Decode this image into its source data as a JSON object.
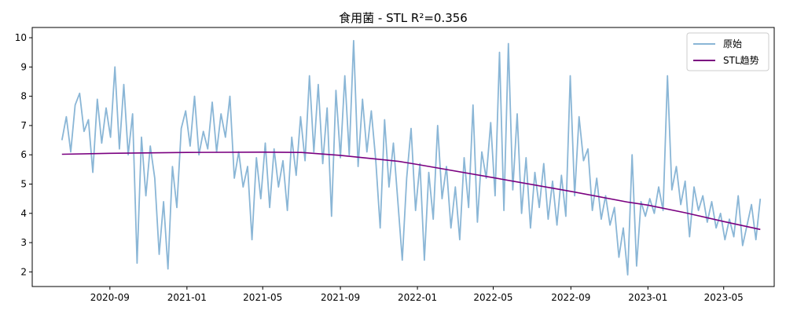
{
  "chart_data": {
    "type": "line",
    "title": "食用菌 - STL R²=0.356",
    "xlabel": "",
    "ylabel": "",
    "x_range": [
      "2020-05-01",
      "2023-07-20"
    ],
    "ylim": [
      1.5,
      10.35
    ],
    "y_ticks": [
      2,
      3,
      4,
      5,
      6,
      7,
      8,
      9,
      10
    ],
    "x_ticks": [
      "2020-09",
      "2021-01",
      "2021-05",
      "2021-09",
      "2022-01",
      "2022-05",
      "2022-09",
      "2023-01",
      "2023-05"
    ],
    "grid": false,
    "legend_position": "top-right",
    "series": [
      {
        "name": "原始",
        "color": "#8ab6d6",
        "points": [
          [
            "2020-06-17",
            6.5
          ],
          [
            "2020-06-24",
            7.3
          ],
          [
            "2020-07-01",
            6.1
          ],
          [
            "2020-07-08",
            7.7
          ],
          [
            "2020-07-15",
            8.1
          ],
          [
            "2020-07-22",
            6.8
          ],
          [
            "2020-07-29",
            7.2
          ],
          [
            "2020-08-05",
            5.4
          ],
          [
            "2020-08-12",
            7.9
          ],
          [
            "2020-08-19",
            6.4
          ],
          [
            "2020-08-26",
            7.6
          ],
          [
            "2020-09-02",
            6.6
          ],
          [
            "2020-09-09",
            9.0
          ],
          [
            "2020-09-16",
            6.2
          ],
          [
            "2020-09-23",
            8.4
          ],
          [
            "2020-09-30",
            6.0
          ],
          [
            "2020-10-07",
            7.4
          ],
          [
            "2020-10-14",
            2.3
          ],
          [
            "2020-10-21",
            6.6
          ],
          [
            "2020-10-28",
            4.6
          ],
          [
            "2020-11-04",
            6.3
          ],
          [
            "2020-11-11",
            5.2
          ],
          [
            "2020-11-18",
            2.6
          ],
          [
            "2020-11-25",
            4.4
          ],
          [
            "2020-12-02",
            2.1
          ],
          [
            "2020-12-09",
            5.6
          ],
          [
            "2020-12-16",
            4.2
          ],
          [
            "2020-12-23",
            6.9
          ],
          [
            "2020-12-30",
            7.5
          ],
          [
            "2021-01-06",
            6.3
          ],
          [
            "2021-01-13",
            8.0
          ],
          [
            "2021-01-20",
            6.0
          ],
          [
            "2021-01-27",
            6.8
          ],
          [
            "2021-02-03",
            6.2
          ],
          [
            "2021-02-10",
            7.8
          ],
          [
            "2021-02-17",
            6.1
          ],
          [
            "2021-02-24",
            7.4
          ],
          [
            "2021-03-03",
            6.6
          ],
          [
            "2021-03-10",
            8.0
          ],
          [
            "2021-03-17",
            5.2
          ],
          [
            "2021-03-24",
            6.1
          ],
          [
            "2021-03-31",
            4.9
          ],
          [
            "2021-04-07",
            5.6
          ],
          [
            "2021-04-14",
            3.1
          ],
          [
            "2021-04-21",
            5.9
          ],
          [
            "2021-04-28",
            4.5
          ],
          [
            "2021-05-05",
            6.4
          ],
          [
            "2021-05-12",
            4.2
          ],
          [
            "2021-05-19",
            6.2
          ],
          [
            "2021-05-26",
            4.9
          ],
          [
            "2021-06-02",
            5.8
          ],
          [
            "2021-06-09",
            4.1
          ],
          [
            "2021-06-16",
            6.6
          ],
          [
            "2021-06-23",
            5.3
          ],
          [
            "2021-06-30",
            7.3
          ],
          [
            "2021-07-07",
            5.8
          ],
          [
            "2021-07-14",
            8.7
          ],
          [
            "2021-07-21",
            6.1
          ],
          [
            "2021-07-28",
            8.4
          ],
          [
            "2021-08-04",
            5.7
          ],
          [
            "2021-08-11",
            7.6
          ],
          [
            "2021-08-18",
            3.9
          ],
          [
            "2021-08-25",
            8.2
          ],
          [
            "2021-09-01",
            5.9
          ],
          [
            "2021-09-08",
            8.7
          ],
          [
            "2021-09-15",
            6.0
          ],
          [
            "2021-09-22",
            9.9
          ],
          [
            "2021-09-29",
            5.6
          ],
          [
            "2021-10-06",
            7.9
          ],
          [
            "2021-10-13",
            6.1
          ],
          [
            "2021-10-20",
            7.5
          ],
          [
            "2021-10-27",
            5.8
          ],
          [
            "2021-11-03",
            3.5
          ],
          [
            "2021-11-10",
            7.2
          ],
          [
            "2021-11-17",
            4.9
          ],
          [
            "2021-11-24",
            6.4
          ],
          [
            "2021-12-01",
            4.4
          ],
          [
            "2021-12-08",
            2.4
          ],
          [
            "2021-12-15",
            5.2
          ],
          [
            "2021-12-22",
            6.9
          ],
          [
            "2021-12-29",
            4.1
          ],
          [
            "2022-01-05",
            5.7
          ],
          [
            "2022-01-12",
            2.4
          ],
          [
            "2022-01-19",
            5.4
          ],
          [
            "2022-01-26",
            3.8
          ],
          [
            "2022-02-02",
            7.0
          ],
          [
            "2022-02-09",
            4.5
          ],
          [
            "2022-02-16",
            5.6
          ],
          [
            "2022-02-23",
            3.5
          ],
          [
            "2022-03-02",
            4.9
          ],
          [
            "2022-03-09",
            3.1
          ],
          [
            "2022-03-16",
            5.9
          ],
          [
            "2022-03-23",
            4.2
          ],
          [
            "2022-03-30",
            7.7
          ],
          [
            "2022-04-06",
            3.7
          ],
          [
            "2022-04-13",
            6.1
          ],
          [
            "2022-04-20",
            5.2
          ],
          [
            "2022-04-27",
            7.1
          ],
          [
            "2022-05-04",
            4.6
          ],
          [
            "2022-05-11",
            9.5
          ],
          [
            "2022-05-18",
            4.1
          ],
          [
            "2022-05-25",
            9.8
          ],
          [
            "2022-06-01",
            4.8
          ],
          [
            "2022-06-08",
            7.4
          ],
          [
            "2022-06-15",
            4.0
          ],
          [
            "2022-06-22",
            5.9
          ],
          [
            "2022-06-29",
            3.5
          ],
          [
            "2022-07-06",
            5.4
          ],
          [
            "2022-07-13",
            4.2
          ],
          [
            "2022-07-20",
            5.7
          ],
          [
            "2022-07-27",
            3.8
          ],
          [
            "2022-08-03",
            5.1
          ],
          [
            "2022-08-10",
            3.6
          ],
          [
            "2022-08-17",
            5.3
          ],
          [
            "2022-08-24",
            3.9
          ],
          [
            "2022-08-31",
            8.7
          ],
          [
            "2022-09-07",
            4.6
          ],
          [
            "2022-09-14",
            7.3
          ],
          [
            "2022-09-21",
            5.8
          ],
          [
            "2022-09-28",
            6.2
          ],
          [
            "2022-10-05",
            4.1
          ],
          [
            "2022-10-12",
            5.2
          ],
          [
            "2022-10-19",
            3.8
          ],
          [
            "2022-10-26",
            4.6
          ],
          [
            "2022-11-02",
            3.6
          ],
          [
            "2022-11-09",
            4.2
          ],
          [
            "2022-11-16",
            2.5
          ],
          [
            "2022-11-23",
            3.5
          ],
          [
            "2022-11-30",
            1.9
          ],
          [
            "2022-12-07",
            6.0
          ],
          [
            "2022-12-14",
            2.2
          ],
          [
            "2022-12-21",
            4.4
          ],
          [
            "2022-12-28",
            3.9
          ],
          [
            "2023-01-04",
            4.5
          ],
          [
            "2023-01-11",
            4.0
          ],
          [
            "2023-01-18",
            4.9
          ],
          [
            "2023-01-25",
            4.1
          ],
          [
            "2023-02-01",
            8.7
          ],
          [
            "2023-02-08",
            4.8
          ],
          [
            "2023-02-15",
            5.6
          ],
          [
            "2023-02-22",
            4.3
          ],
          [
            "2023-03-01",
            5.1
          ],
          [
            "2023-03-08",
            3.2
          ],
          [
            "2023-03-15",
            4.9
          ],
          [
            "2023-03-22",
            4.1
          ],
          [
            "2023-03-29",
            4.6
          ],
          [
            "2023-04-05",
            3.7
          ],
          [
            "2023-04-12",
            4.4
          ],
          [
            "2023-04-19",
            3.5
          ],
          [
            "2023-04-26",
            4.0
          ],
          [
            "2023-05-03",
            3.1
          ],
          [
            "2023-05-10",
            3.8
          ],
          [
            "2023-05-17",
            3.2
          ],
          [
            "2023-05-24",
            4.6
          ],
          [
            "2023-05-31",
            2.9
          ],
          [
            "2023-06-07",
            3.6
          ],
          [
            "2023-06-14",
            4.3
          ],
          [
            "2023-06-21",
            3.1
          ],
          [
            "2023-06-28",
            4.5
          ]
        ]
      },
      {
        "name": "STL趋势",
        "color": "#7a0080",
        "points": [
          [
            "2020-06-17",
            6.02
          ],
          [
            "2020-09-01",
            6.05
          ],
          [
            "2021-01-01",
            6.08
          ],
          [
            "2021-05-01",
            6.09
          ],
          [
            "2021-07-01",
            6.08
          ],
          [
            "2021-09-01",
            5.98
          ],
          [
            "2021-12-01",
            5.78
          ],
          [
            "2022-01-01",
            5.67
          ],
          [
            "2022-05-01",
            5.22
          ],
          [
            "2022-09-01",
            4.75
          ],
          [
            "2022-12-01",
            4.38
          ],
          [
            "2023-01-01",
            4.28
          ],
          [
            "2023-03-01",
            4.02
          ],
          [
            "2023-05-01",
            3.72
          ],
          [
            "2023-06-28",
            3.45
          ]
        ]
      }
    ]
  }
}
